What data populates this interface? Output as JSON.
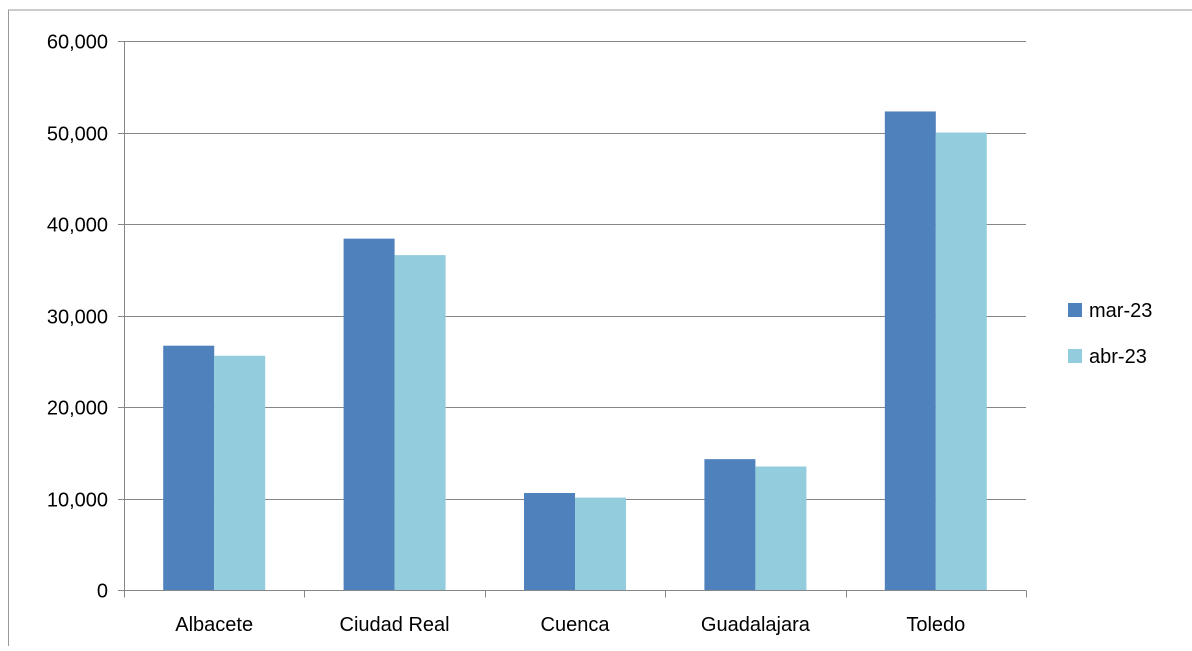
{
  "chart_data": {
    "type": "bar",
    "title": "",
    "xlabel": "",
    "ylabel": "",
    "categories": [
      "Albacete",
      "Ciudad Real",
      "Cuenca",
      "Guadalajara",
      "Toledo"
    ],
    "series": [
      {
        "name": "mar-23",
        "color": "#4f81bd",
        "values": [
          26700,
          38400,
          10600,
          14300,
          52300
        ]
      },
      {
        "name": "abr-23",
        "color": "#93cddd",
        "values": [
          25600,
          36600,
          10100,
          13500,
          50000
        ]
      }
    ],
    "ylim": [
      0,
      60000
    ],
    "yticks": [
      0,
      10000,
      20000,
      30000,
      40000,
      50000,
      60000
    ],
    "ytick_labels": [
      "0",
      "10,000",
      "20,000",
      "30,000",
      "40,000",
      "50,000",
      "60,000"
    ],
    "grid": true,
    "legend_position": "right"
  }
}
